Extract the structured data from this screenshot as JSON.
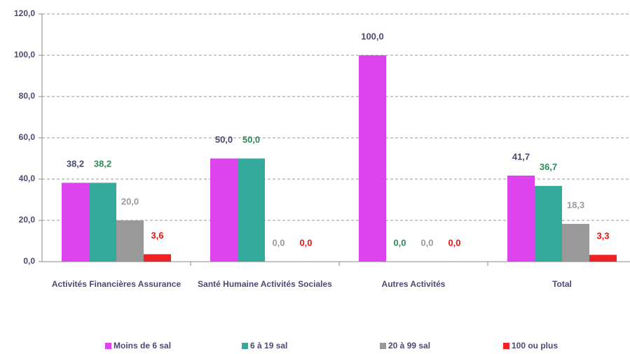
{
  "chart_data": {
    "type": "bar",
    "categories": [
      "Activités Financières Assurance",
      "Santé Humaine Activités Sociales",
      "Autres Activités",
      "Total"
    ],
    "series": [
      {
        "name": "Moins de 6 sal",
        "color": "#dd44ee",
        "label_color": "#4a4a70",
        "values": [
          38.2,
          50.0,
          100.0,
          41.7
        ],
        "value_labels": [
          "38,2",
          "50,0",
          "100,0",
          "41,7"
        ]
      },
      {
        "name": "6 à 19 sal",
        "color": "#33aa9c",
        "label_color": "#2e8b57",
        "values": [
          38.2,
          50.0,
          0.0,
          36.7
        ],
        "value_labels": [
          "38,2",
          "50,0",
          "0,0",
          "36,7"
        ]
      },
      {
        "name": "20 à 99 sal",
        "color": "#999999",
        "label_color": "#9a9a9a",
        "values": [
          20.0,
          0.0,
          0.0,
          18.3
        ],
        "value_labels": [
          "20,0",
          "0,0",
          "0,0",
          "18,3"
        ]
      },
      {
        "name": "100 ou plus",
        "color": "#ee2222",
        "label_color": "#ee1111",
        "values": [
          3.6,
          0.0,
          0.0,
          3.3
        ],
        "value_labels": [
          "3,6",
          "0,0",
          "0,0",
          "3,3"
        ]
      }
    ],
    "ylim": [
      0,
      120
    ],
    "yticks": [
      {
        "value": 0,
        "label": "0,0"
      },
      {
        "value": 20,
        "label": "20,0"
      },
      {
        "value": 40,
        "label": "40,0"
      },
      {
        "value": 60,
        "label": "60,0"
      },
      {
        "value": 80,
        "label": "80,0"
      },
      {
        "value": 100,
        "label": "100,0"
      },
      {
        "value": 120,
        "label": "120,0"
      }
    ],
    "grid": true
  }
}
